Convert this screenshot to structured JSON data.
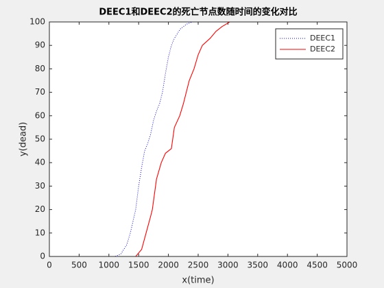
{
  "chart_data": {
    "type": "line",
    "title": "DEEC1和DEEC2的死亡节点数随时间的变化对比",
    "x_label": "x(time)",
    "y_label": "y(dead)",
    "xlim": [
      0,
      5000
    ],
    "xticks": [
      0,
      500,
      1000,
      1500,
      2000,
      2500,
      3000,
      3500,
      4000,
      4500,
      5000
    ],
    "ylim": [
      0,
      100
    ],
    "yticks": [
      0,
      10,
      20,
      30,
      40,
      50,
      60,
      70,
      80,
      90,
      100
    ],
    "legend": "northeast",
    "series": [
      {
        "name": "DEEC1",
        "color": "#0000ff",
        "style": "dotted",
        "x": [
          0,
          1100,
          1200,
          1300,
          1360,
          1450,
          1500,
          1550,
          1600,
          1650,
          1700,
          1750,
          1800,
          1850,
          1900,
          1950,
          2000,
          2050,
          2100,
          2200,
          2300,
          2400,
          5000
        ],
        "values": [
          0,
          0,
          1,
          5,
          10,
          20,
          30,
          38,
          45,
          48,
          52,
          58,
          62,
          65,
          70,
          78,
          85,
          90,
          93,
          97,
          99,
          100,
          100
        ]
      },
      {
        "name": "DEEC2",
        "color": "#ff0000",
        "style": "solid",
        "x": [
          0,
          1450,
          1550,
          1625,
          1700,
          1730,
          1800,
          1880,
          1950,
          2050,
          2100,
          2190,
          2250,
          2300,
          2350,
          2430,
          2500,
          2570,
          2700,
          2800,
          2900,
          3030,
          5000
        ],
        "values": [
          0,
          0,
          3,
          10,
          17,
          20,
          33,
          40,
          44,
          46,
          55,
          60,
          65,
          70,
          75,
          80,
          86,
          90,
          93,
          96,
          98,
          100,
          100
        ]
      }
    ]
  }
}
